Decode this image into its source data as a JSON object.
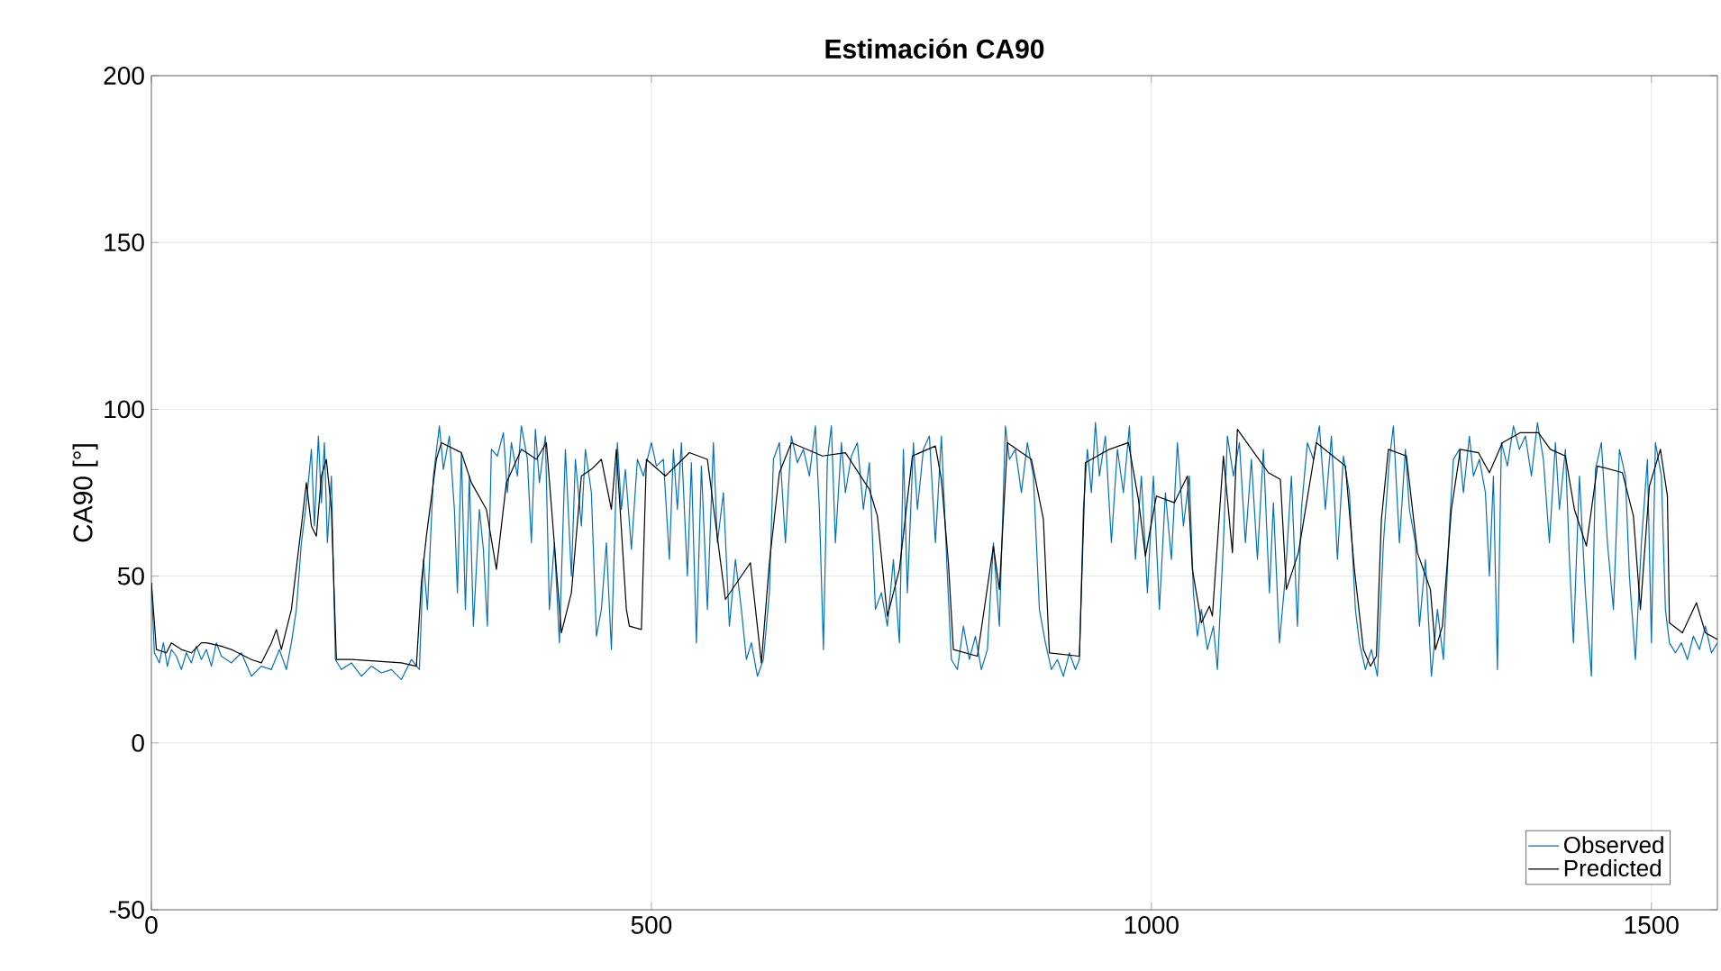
{
  "chart_data": {
    "type": "line",
    "title": "Estimación CA90",
    "ylabel": "CA90 [°]",
    "xlim": [
      0,
      1566
    ],
    "ylim": [
      -50,
      200
    ],
    "xticks": [
      0,
      500,
      1000,
      1500
    ],
    "yticks": [
      -50,
      0,
      50,
      100,
      150,
      200
    ],
    "grid": true,
    "legend": "bottom right",
    "marker": "none",
    "line_style": "solid",
    "series": [
      {
        "name": "Observed",
        "color": "#0072bd",
        "x": [
          0,
          3,
          8,
          12,
          16,
          20,
          25,
          30,
          35,
          40,
          45,
          50,
          55,
          60,
          65,
          70,
          80,
          90,
          100,
          110,
          120,
          128,
          135,
          140,
          145,
          150,
          155,
          160,
          163,
          167,
          170,
          173,
          176,
          180,
          184,
          190,
          200,
          210,
          220,
          230,
          240,
          250,
          260,
          268,
          272,
          276,
          282,
          288,
          292,
          298,
          303,
          306,
          310,
          314,
          318,
          322,
          328,
          332,
          336,
          340,
          346,
          352,
          356,
          360,
          366,
          370,
          376,
          380,
          384,
          388,
          394,
          398,
          403,
          408,
          414,
          420,
          424,
          430,
          434,
          440,
          445,
          450,
          455,
          460,
          466,
          470,
          474,
          480,
          486,
          492,
          500,
          505,
          512,
          518,
          522,
          526,
          530,
          536,
          540,
          545,
          550,
          556,
          562,
          566,
          572,
          578,
          584,
          590,
          595,
          600,
          606,
          612,
          618,
          622,
          628,
          634,
          640,
          646,
          652,
          658,
          664,
          668,
          672,
          676,
          680,
          684,
          690,
          694,
          700,
          706,
          712,
          718,
          724,
          730,
          736,
          742,
          748,
          752,
          756,
          762,
          766,
          772,
          778,
          784,
          790,
          796,
          800,
          806,
          812,
          818,
          824,
          830,
          836,
          842,
          848,
          854,
          858,
          864,
          870,
          876,
          882,
          888,
          894,
          900,
          906,
          912,
          918,
          924,
          928,
          932,
          936,
          940,
          944,
          948,
          954,
          960,
          966,
          972,
          978,
          984,
          990,
          996,
          1002,
          1008,
          1014,
          1020,
          1026,
          1032,
          1038,
          1042,
          1046,
          1050,
          1056,
          1062,
          1066,
          1072,
          1076,
          1082,
          1088,
          1094,
          1100,
          1106,
          1112,
          1118,
          1122,
          1128,
          1134,
          1140,
          1146,
          1150,
          1156,
          1162,
          1168,
          1174,
          1180,
          1186,
          1192,
          1198,
          1204,
          1208,
          1214,
          1220,
          1226,
          1232,
          1238,
          1242,
          1248,
          1254,
          1258,
          1264,
          1268,
          1274,
          1280,
          1286,
          1292,
          1298,
          1302,
          1308,
          1312,
          1318,
          1322,
          1328,
          1334,
          1338,
          1342,
          1346,
          1350,
          1356,
          1362,
          1368,
          1374,
          1380,
          1386,
          1392,
          1398,
          1404,
          1408,
          1414,
          1418,
          1422,
          1428,
          1434,
          1440,
          1444,
          1450,
          1456,
          1462,
          1468,
          1474,
          1478,
          1484,
          1490,
          1496,
          1500,
          1504,
          1510,
          1514,
          1518,
          1524,
          1530,
          1536,
          1542,
          1548,
          1554,
          1560,
          1566
        ],
        "values": [
          48,
          27,
          24,
          30,
          23,
          28,
          26,
          22,
          27,
          24,
          29,
          25,
          28,
          23,
          30,
          26,
          24,
          27,
          20,
          23,
          22,
          28,
          22,
          30,
          40,
          60,
          72,
          88,
          65,
          92,
          72,
          90,
          60,
          80,
          25,
          22,
          24,
          20,
          23,
          21,
          22,
          19,
          25,
          22,
          55,
          40,
          80,
          95,
          82,
          92,
          70,
          45,
          87,
          40,
          80,
          35,
          70,
          58,
          35,
          88,
          86,
          93,
          75,
          90,
          80,
          95,
          85,
          60,
          94,
          78,
          92,
          40,
          60,
          30,
          88,
          50,
          85,
          65,
          88,
          75,
          32,
          40,
          60,
          28,
          90,
          70,
          82,
          58,
          85,
          80,
          90,
          83,
          85,
          55,
          88,
          70,
          90,
          50,
          84,
          30,
          83,
          40,
          90,
          60,
          75,
          35,
          55,
          40,
          25,
          30,
          20,
          25,
          45,
          85,
          90,
          60,
          92,
          84,
          88,
          80,
          95,
          70,
          28,
          85,
          95,
          60,
          90,
          75,
          86,
          90,
          70,
          84,
          40,
          45,
          35,
          55,
          30,
          88,
          45,
          90,
          70,
          88,
          92,
          60,
          92,
          50,
          25,
          22,
          35,
          25,
          32,
          22,
          28,
          60,
          35,
          95,
          85,
          88,
          75,
          90,
          80,
          40,
          30,
          22,
          25,
          20,
          27,
          22,
          25,
          70,
          88,
          75,
          96,
          80,
          92,
          60,
          88,
          75,
          95,
          55,
          80,
          45,
          80,
          40,
          75,
          55,
          90,
          65,
          80,
          45,
          32,
          40,
          28,
          35,
          22,
          60,
          92,
          80,
          90,
          60,
          85,
          55,
          88,
          45,
          72,
          30,
          50,
          80,
          35,
          70,
          90,
          85,
          95,
          70,
          92,
          55,
          86,
          75,
          40,
          30,
          22,
          28,
          20,
          60,
          85,
          95,
          60,
          88,
          70,
          60,
          35,
          55,
          20,
          40,
          25,
          65,
          85,
          88,
          75,
          92,
          80,
          85,
          75,
          50,
          80,
          22,
          90,
          83,
          95,
          88,
          92,
          80,
          96,
          85,
          60,
          90,
          70,
          88,
          55,
          30,
          80,
          45,
          20,
          82,
          90,
          60,
          40,
          88,
          80,
          50,
          25,
          60,
          85,
          30,
          90,
          80,
          40,
          30,
          27,
          30,
          25,
          32,
          28,
          35,
          27,
          30
        ]
      },
      {
        "name": "Predicted",
        "color": "#000000",
        "x": [
          0,
          5,
          15,
          20,
          30,
          40,
          50,
          55,
          70,
          80,
          100,
          110,
          120,
          125,
          130,
          140,
          150,
          155,
          160,
          165,
          170,
          175,
          180,
          185,
          200,
          250,
          265,
          270,
          275,
          285,
          290,
          310,
          320,
          335,
          345,
          355,
          370,
          385,
          395,
          405,
          410,
          420,
          430,
          440,
          450,
          460,
          465,
          475,
          478,
          490,
          495,
          514,
          538,
          556,
          574,
          599,
          610,
          618,
          628,
          640,
          671,
          694,
          718,
          726,
          736,
          748,
          761,
          784,
          790,
          797,
          802,
          826,
          842,
          848,
          856,
          880,
          892,
          898,
          928,
          934,
          958,
          977,
          987,
          994,
          1005,
          1023,
          1036,
          1041,
          1050,
          1058,
          1061,
          1072,
          1081,
          1086,
          1117,
          1129,
          1135,
          1147,
          1165,
          1194,
          1203,
          1212,
          1219,
          1225,
          1230,
          1237,
          1255,
          1266,
          1279,
          1284,
          1291,
          1300,
          1309,
          1327,
          1338,
          1351,
          1369,
          1387,
          1399,
          1414,
          1423,
          1435,
          1446,
          1471,
          1482,
          1489,
          1498,
          1509,
          1516,
          1518,
          1531,
          1545,
          1554,
          1566
        ],
        "values": [
          48,
          28,
          27,
          30,
          28,
          27,
          30,
          30,
          29,
          28,
          25,
          24,
          30,
          34,
          28,
          40,
          65,
          78,
          65,
          62,
          80,
          85,
          70,
          25,
          25,
          24,
          23,
          48,
          62,
          85,
          90,
          87,
          78,
          70,
          52,
          78,
          88,
          85,
          90,
          52,
          33,
          45,
          80,
          82,
          85,
          70,
          88,
          40,
          35,
          34,
          85,
          80,
          87,
          85,
          43,
          54,
          24,
          54,
          81,
          90,
          86,
          87,
          76,
          68,
          38,
          52,
          86,
          89,
          79,
          54,
          28,
          26,
          59,
          46,
          90,
          85,
          67,
          27,
          26,
          84,
          88,
          90,
          73,
          56,
          74,
          72,
          80,
          52,
          36,
          41,
          38,
          86,
          57,
          94,
          81,
          79,
          46,
          57,
          90,
          83,
          52,
          28,
          23,
          26,
          67,
          88,
          86,
          57,
          46,
          28,
          35,
          70,
          88,
          87,
          81,
          90,
          93,
          93,
          88,
          86,
          70,
          59,
          83,
          81,
          68,
          40,
          77,
          88,
          74,
          36,
          33,
          42,
          33,
          31
        ]
      }
    ]
  }
}
